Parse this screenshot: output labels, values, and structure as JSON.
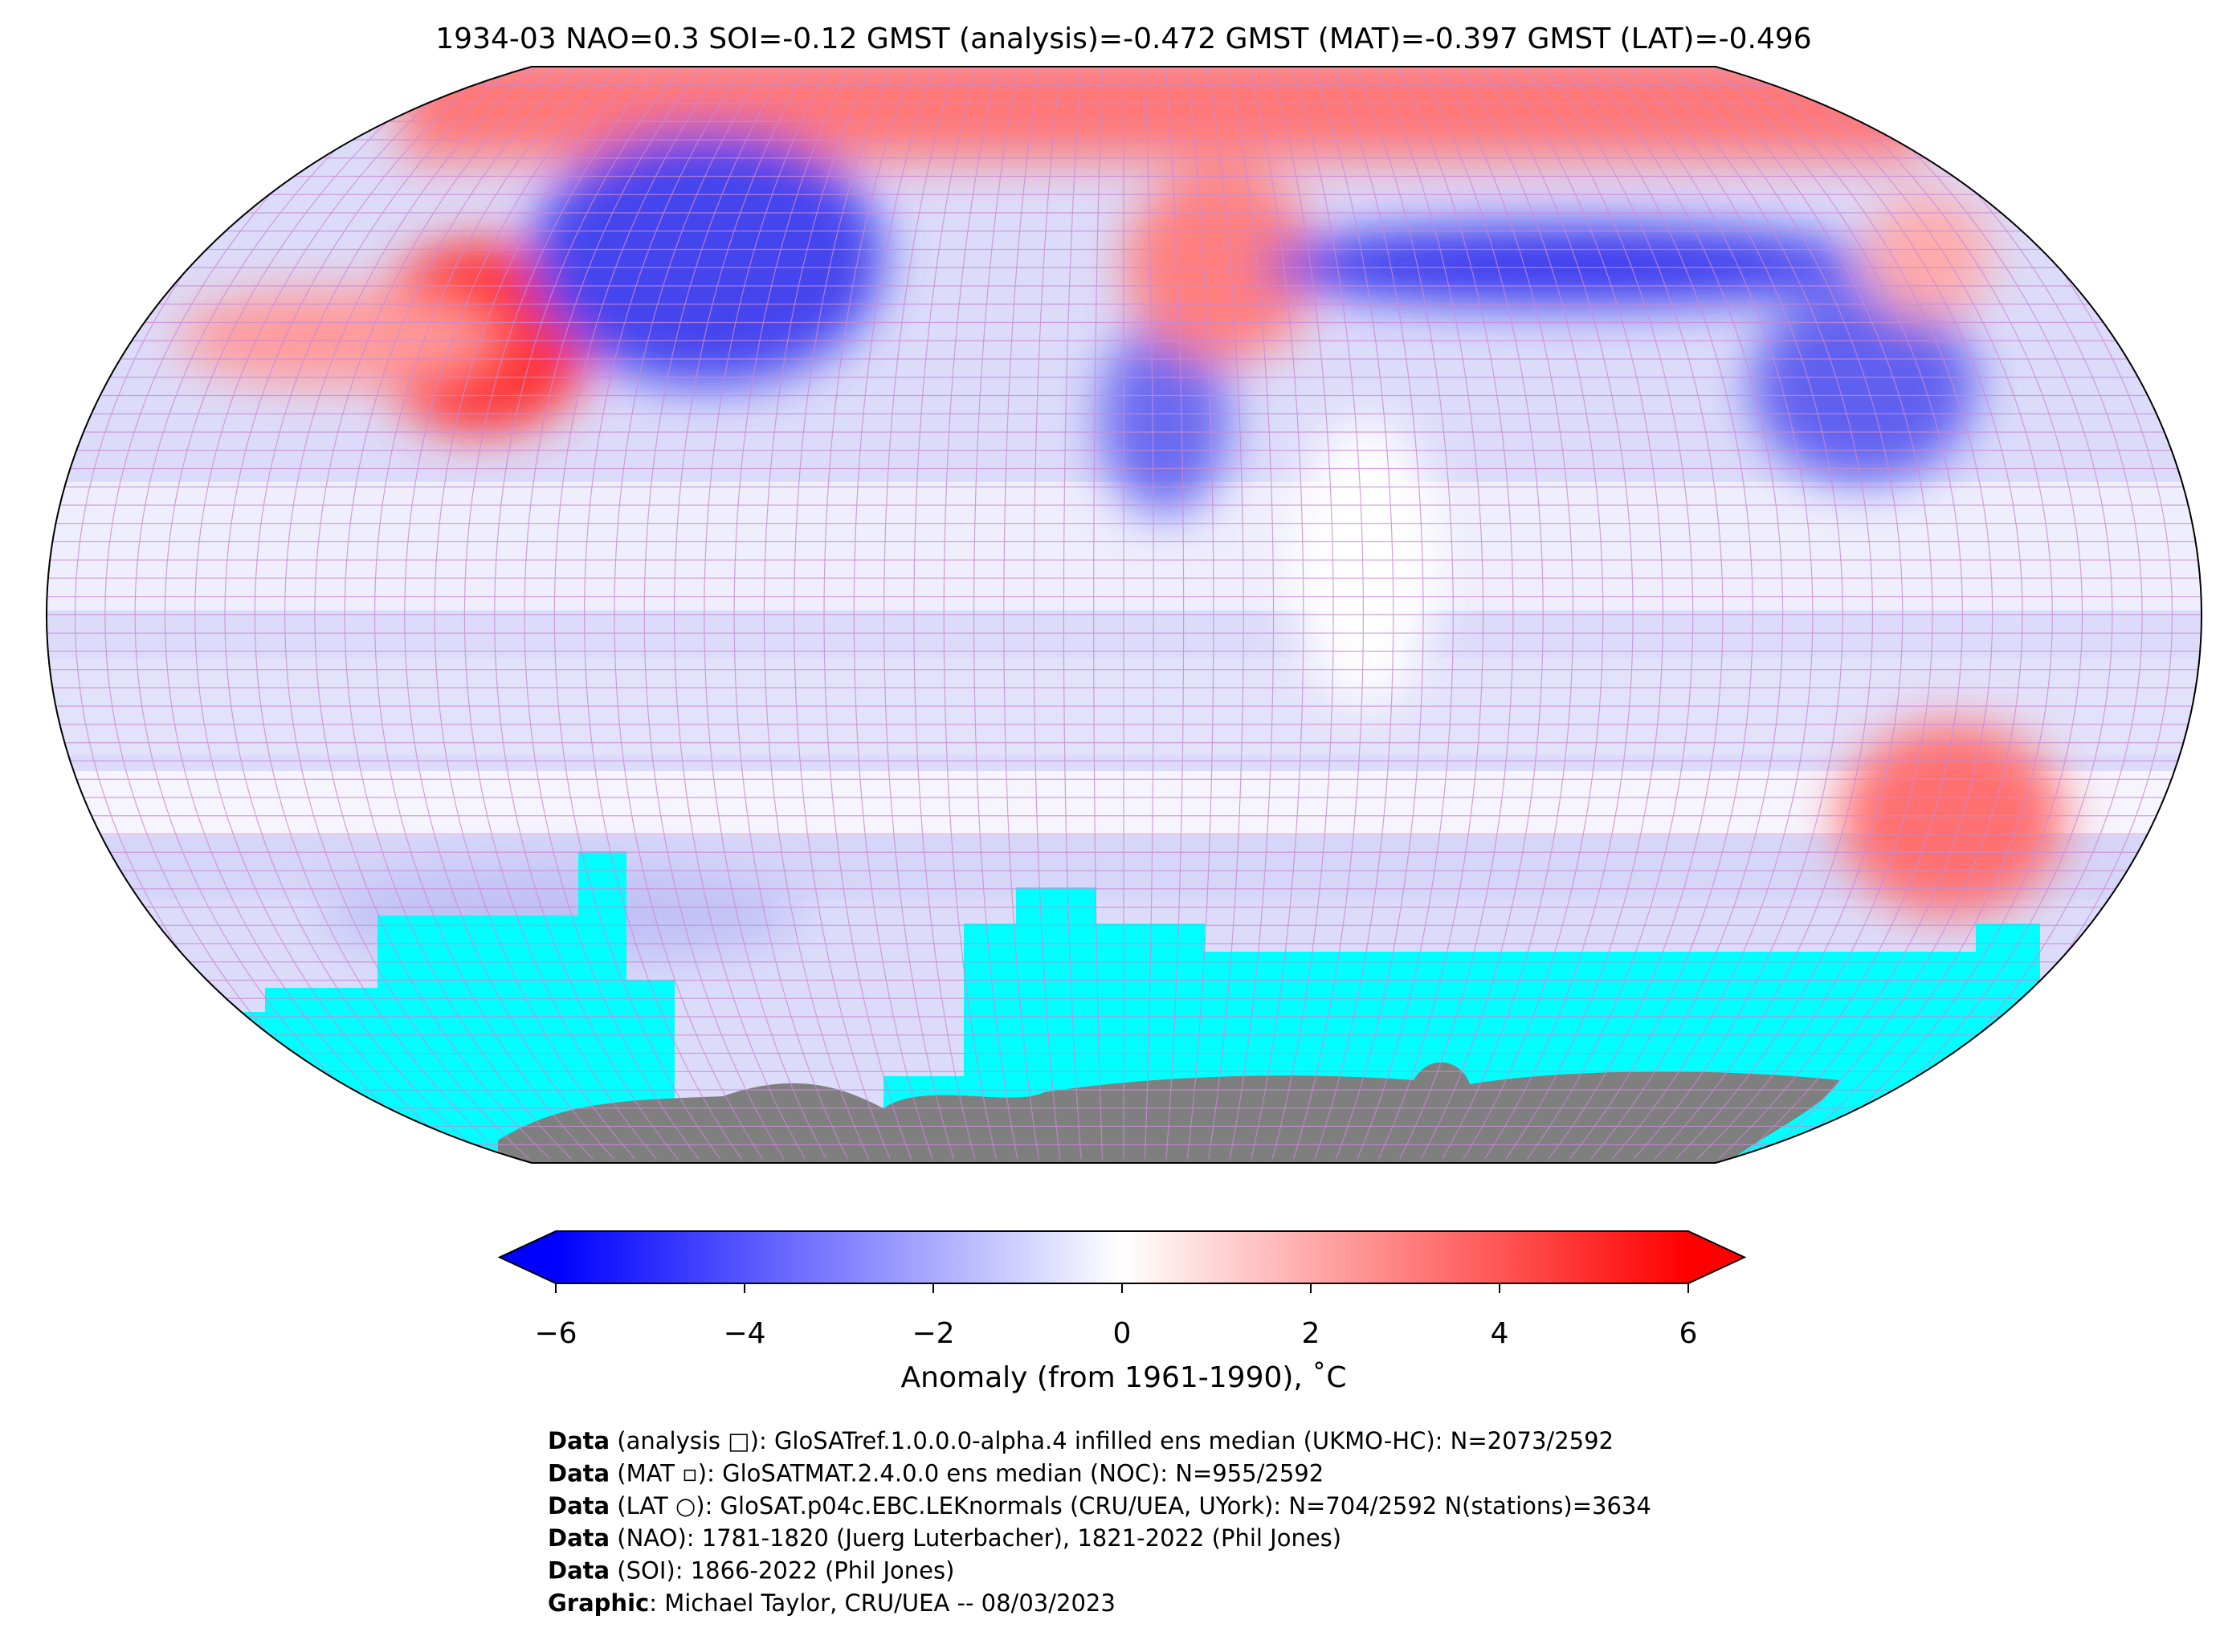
{
  "header": {
    "title": "1934-03 NAO=0.3 SOI=-0.12 GMST (analysis)=-0.472 GMST (MAT)=-0.397 GMST (LAT)=-0.496"
  },
  "colorbar": {
    "lim": [
      -6,
      6
    ],
    "extend": "both",
    "ticks": [
      {
        "value": -6,
        "label": "−6"
      },
      {
        "value": -4,
        "label": "−4"
      },
      {
        "value": -2,
        "label": "−2"
      },
      0,
      2,
      4,
      6
    ],
    "label": "Anomaly (from 1961-1990), ˚C",
    "colors": [
      "#0000ff",
      "#ffffff",
      "#ff0000"
    ]
  },
  "footer": {
    "lines": [
      {
        "bold": "Data",
        "text": " (analysis □): GloSATref.1.0.0.0-alpha.4 infilled ens median (UKMO-HC): N=2073/2592"
      },
      {
        "bold": "Data",
        "text": " (MAT ▫): GloSATMAT.2.4.0.0 ens median (NOC): N=955/2592"
      },
      {
        "bold": "Data",
        "text": " (LAT ○): GloSAT.p04c.EBC.LEKnormals (CRU/UEA, UYork): N=704/2592 N(stations)=3634"
      },
      {
        "bold": "Data",
        "text": " (NAO): 1781-1820 (Juerg Luterbacher), 1821-2022 (Phil Jones)"
      },
      {
        "bold": "Data",
        "text": " (SOI): 1866-2022 (Phil Jones)"
      },
      {
        "bold": "Graphic",
        "text": ": Michael Taylor, CRU/UEA -- 08/03/2023"
      }
    ]
  }
}
